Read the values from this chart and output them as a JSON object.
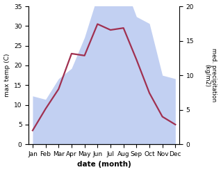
{
  "months": [
    "Jan",
    "Feb",
    "Mar",
    "Apr",
    "May",
    "Jun",
    "Jul",
    "Aug",
    "Sep",
    "Oct",
    "Nov",
    "Dec"
  ],
  "temperature": [
    3.5,
    9.0,
    14.0,
    23.0,
    22.5,
    30.5,
    29.0,
    29.5,
    21.5,
    13.0,
    7.0,
    5.0
  ],
  "precipitation": [
    7.0,
    6.5,
    9.5,
    11.0,
    15.5,
    21.5,
    21.5,
    23.5,
    18.5,
    17.5,
    10.0,
    9.5
  ],
  "temp_ylim": [
    0,
    35
  ],
  "precip_ylim": [
    0,
    20
  ],
  "temp_scale": 35,
  "precip_scale": 20,
  "temp_color": "#a03050",
  "precip_fill_color": "#b8c8f0",
  "xlabel": "date (month)",
  "ylabel_left": "max temp (C)",
  "ylabel_right": "med. precipitation\n(kg/m2)",
  "right_yticks": [
    0,
    5,
    10,
    15,
    20
  ],
  "left_yticks": [
    0,
    5,
    10,
    15,
    20,
    25,
    30,
    35
  ],
  "bg_color": "#ffffff",
  "line_width": 1.6
}
